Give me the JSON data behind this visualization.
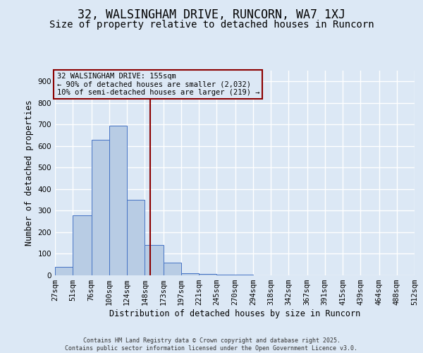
{
  "title": "32, WALSINGHAM DRIVE, RUNCORN, WA7 1XJ",
  "subtitle": "Size of property relative to detached houses in Runcorn",
  "xlabel": "Distribution of detached houses by size in Runcorn",
  "ylabel": "Number of detached properties",
  "bar_values": [
    40,
    280,
    630,
    695,
    350,
    140,
    60,
    10,
    5,
    3,
    2,
    1,
    1,
    0,
    0,
    0,
    0,
    0,
    0,
    0
  ],
  "bin_edges": [
    27,
    51,
    76,
    100,
    124,
    148,
    173,
    197,
    221,
    245,
    270,
    294,
    318,
    342,
    367,
    391,
    415,
    439,
    464,
    488,
    512
  ],
  "bar_color": "#b8cce4",
  "bar_edge_color": "#4472c4",
  "ylim": [
    0,
    950
  ],
  "yticks": [
    0,
    100,
    200,
    300,
    400,
    500,
    600,
    700,
    800,
    900
  ],
  "property_line_x": 155,
  "property_line_color": "#8B0000",
  "annotation_text": "32 WALSINGHAM DRIVE: 155sqm\n← 90% of detached houses are smaller (2,032)\n10% of semi-detached houses are larger (219) →",
  "annotation_box_color": "#8B0000",
  "background_color": "#dce8f5",
  "grid_color": "#ffffff",
  "footer_text": "Contains HM Land Registry data © Crown copyright and database right 2025.\nContains public sector information licensed under the Open Government Licence v3.0.",
  "title_fontsize": 12,
  "subtitle_fontsize": 10,
  "label_fontsize": 8.5,
  "tick_fontsize": 7.5,
  "annotation_fontsize": 7.5
}
